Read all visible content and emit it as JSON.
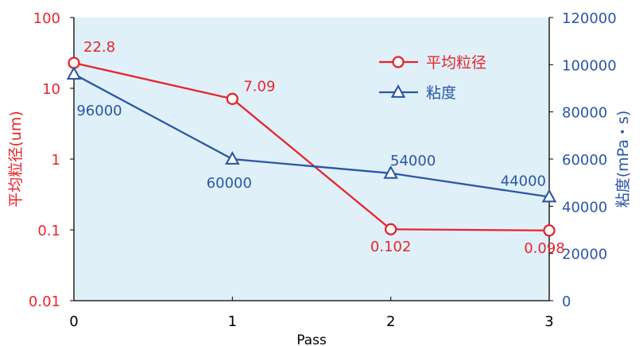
{
  "chart_data": {
    "type": "line",
    "xlabel": "Pass",
    "ylabel_left": "平均粒径(um)",
    "ylabel_right": "粘度(mPa・s)",
    "x": [
      0,
      1,
      2,
      3
    ],
    "x_tick_labels": [
      "0",
      "1",
      "2",
      "3"
    ],
    "left_axis": {
      "scale": "log",
      "ylim": [
        0.01,
        100
      ],
      "tick_values": [
        0.01,
        0.1,
        1,
        10,
        100
      ],
      "tick_labels": [
        "0.01",
        "0.1",
        "1",
        "10",
        "100"
      ],
      "color": "#e8242a"
    },
    "right_axis": {
      "scale": "linear",
      "ylim": [
        0,
        120000
      ],
      "tick_values": [
        0,
        20000,
        40000,
        60000,
        80000,
        100000,
        120000
      ],
      "tick_labels": [
        "0",
        "20000",
        "40000",
        "60000",
        "80000",
        "100000",
        "120000"
      ],
      "color": "#2a56a6"
    },
    "series": [
      {
        "name": "平均粒径",
        "axis": "left",
        "marker": "circle",
        "color": "#e8242a",
        "values": [
          22.8,
          7.09,
          0.102,
          0.098
        ],
        "data_labels": [
          "22.8",
          "7.09",
          "0.102",
          "0.098"
        ]
      },
      {
        "name": "粘度",
        "axis": "right",
        "marker": "triangle",
        "color": "#2a56a6",
        "values": [
          96000,
          60000,
          54000,
          44000
        ],
        "data_labels": [
          "96000",
          "60000",
          "54000",
          "44000"
        ]
      }
    ],
    "plot_background": "#dff0f9",
    "grid": false,
    "legend_position": "top-right"
  }
}
